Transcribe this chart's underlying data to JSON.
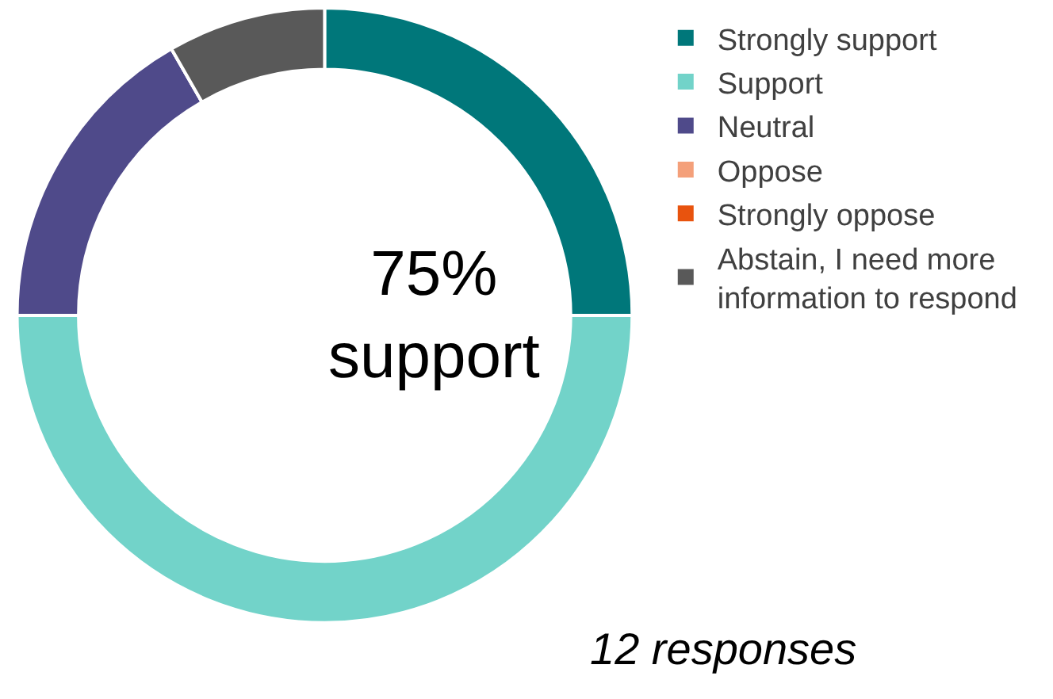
{
  "chart_data": {
    "type": "donut",
    "categories": [
      "Strongly support",
      "Support",
      "Neutral",
      "Oppose",
      "Strongly oppose",
      "Abstain, I need more information to respond"
    ],
    "values": [
      25,
      50,
      16.7,
      0,
      0,
      8.3
    ],
    "colors": [
      "#00777a",
      "#72d3c9",
      "#4f4a8a",
      "#f4a07a",
      "#e8530e",
      "#595959"
    ],
    "legend": "right",
    "annotations": [
      "75%\nsupport",
      "12 responses"
    ]
  }
}
